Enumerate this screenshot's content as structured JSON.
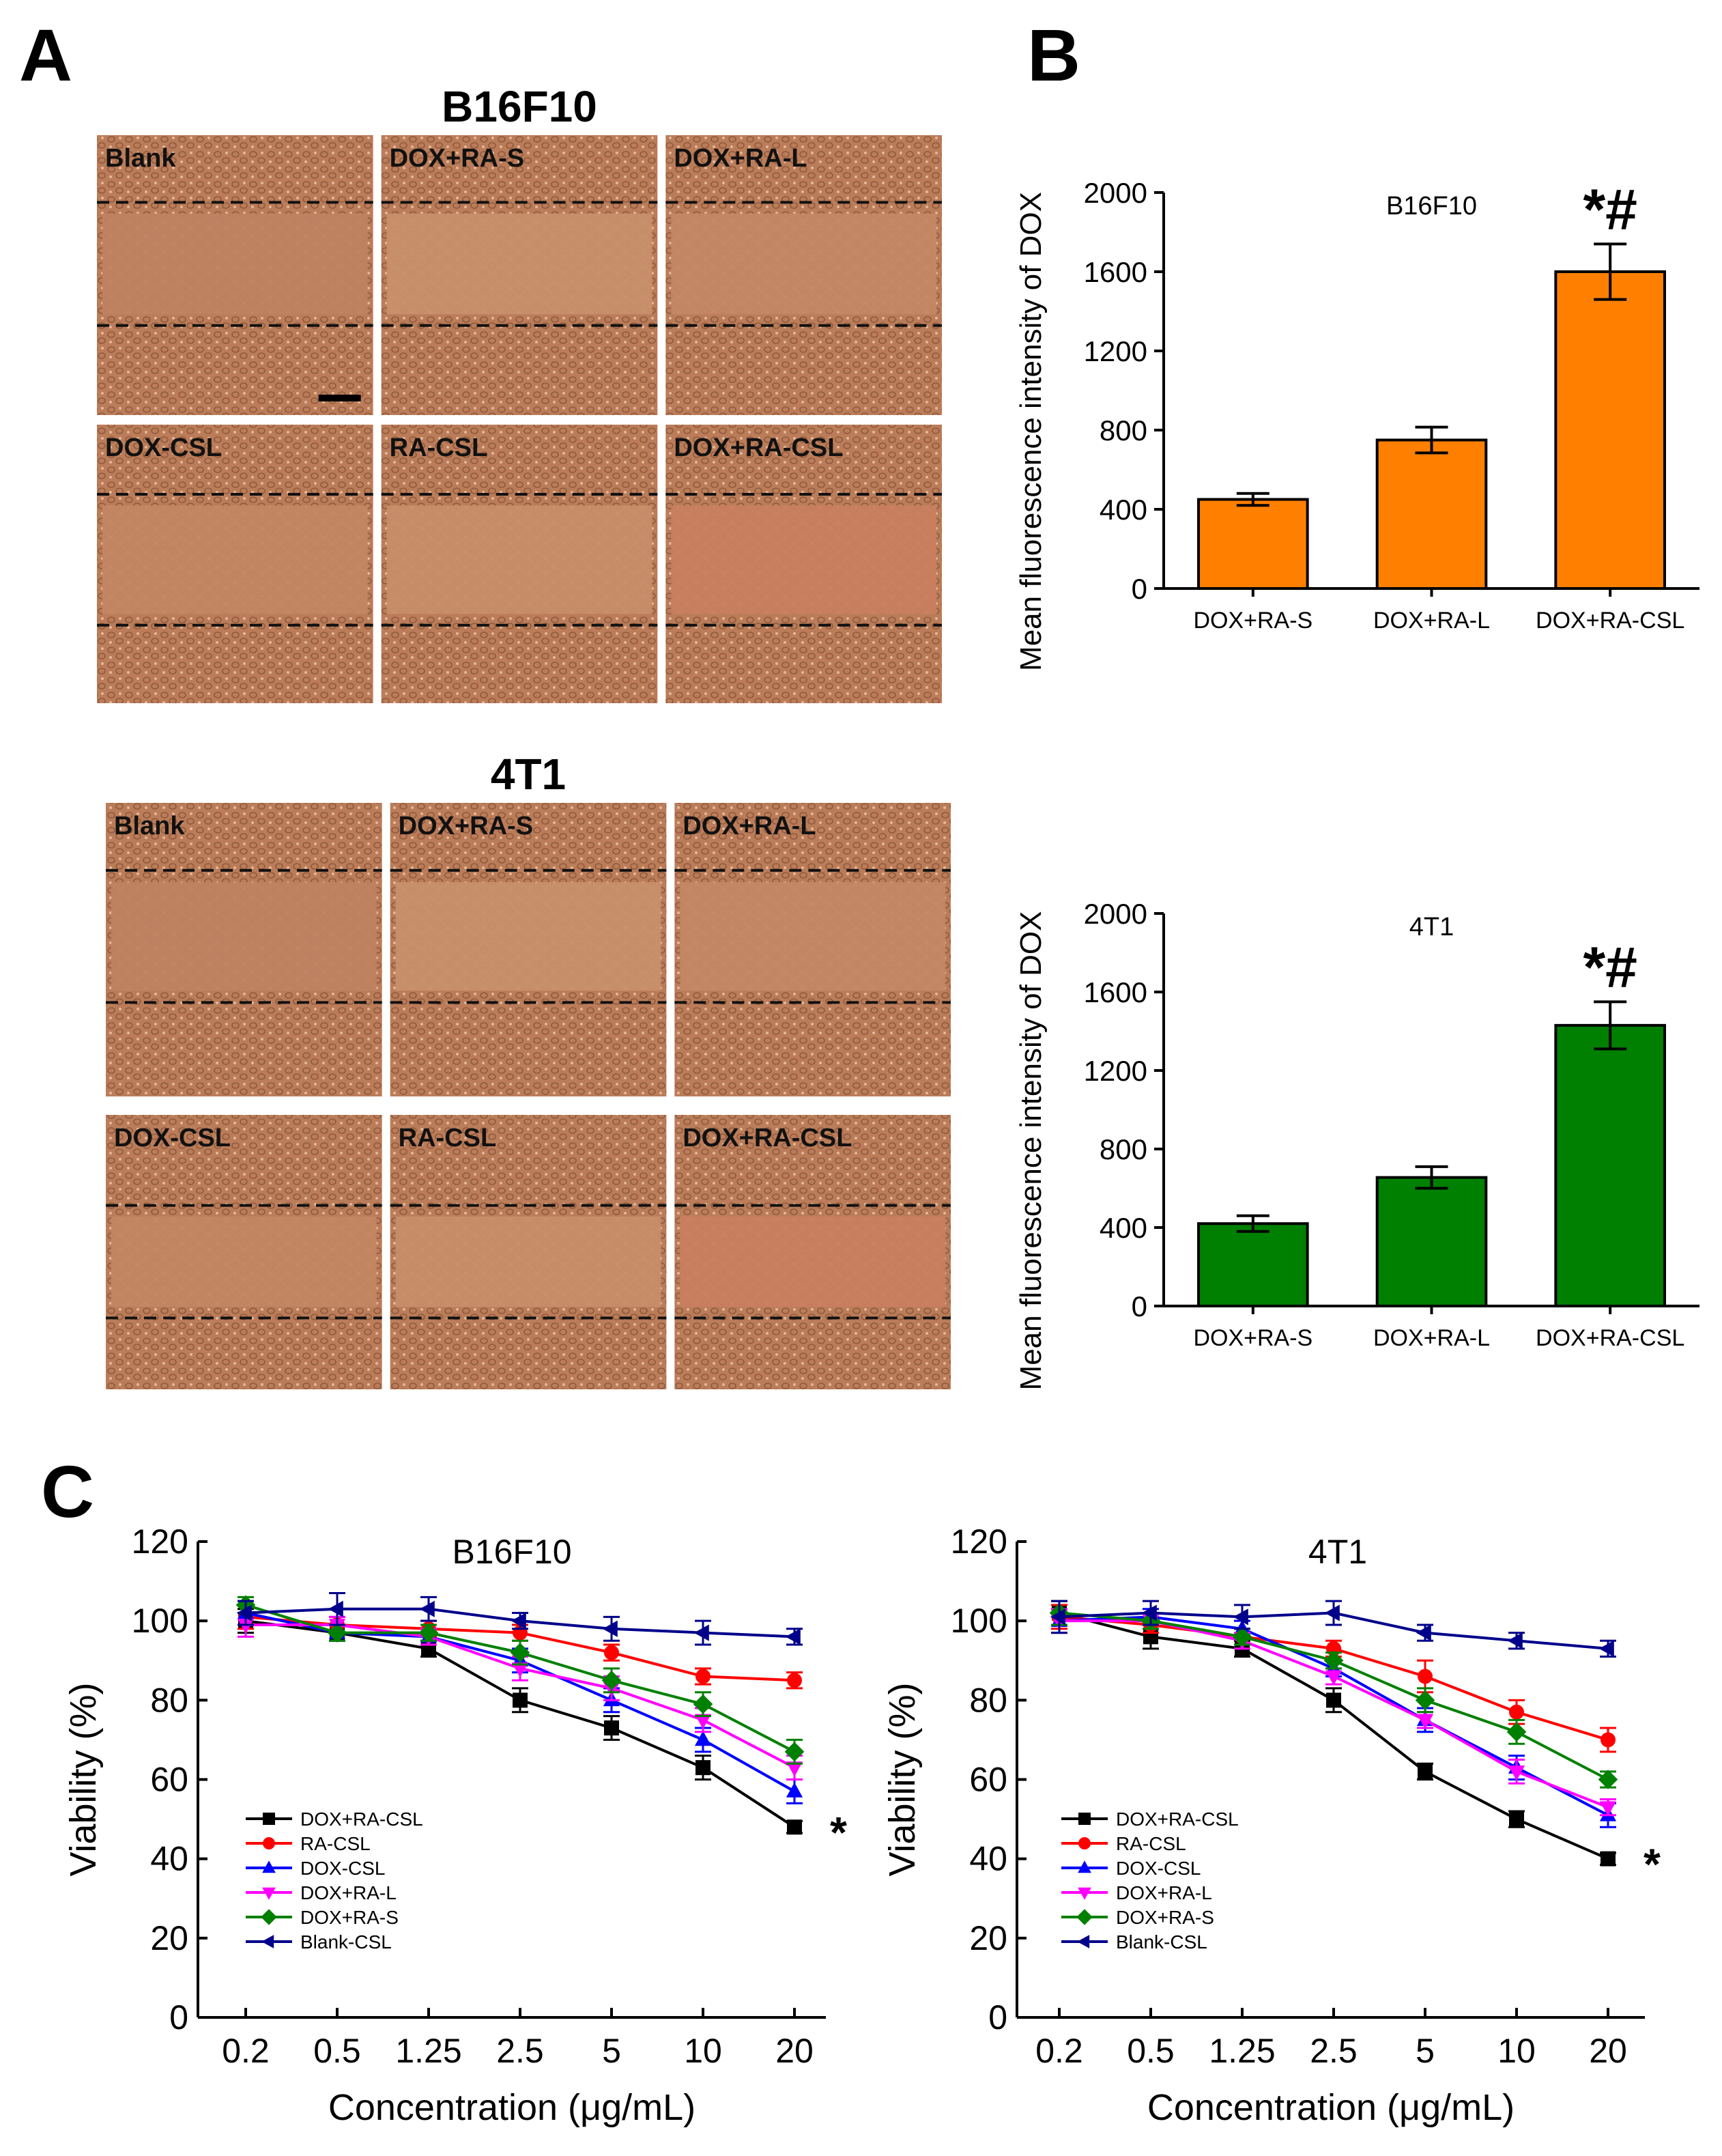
{
  "panel_labels": {
    "a": "A",
    "b": "B",
    "c": "C"
  },
  "panel_a": {
    "scale_bar": "scale-bar",
    "groups": [
      {
        "title": "B16F10",
        "images": [
          "Blank",
          "DOX+RA-S",
          "DOX+RA-L",
          "DOX-CSL",
          "RA-CSL",
          "DOX+RA-CSL"
        ]
      },
      {
        "title": "4T1",
        "images": [
          "Blank",
          "DOX+RA-S",
          "DOX+RA-L",
          "DOX-CSL",
          "RA-CSL",
          "DOX+RA-CSL"
        ]
      }
    ]
  },
  "colors": {
    "orange": "#ff8000",
    "green": "#008000",
    "black": "#000000",
    "red": "#ff0000",
    "blue": "#0000ff",
    "magenta": "#ff00ff",
    "dkgreen": "#008000",
    "navy": "#00008b",
    "tissue": "#c88a66"
  },
  "chart_data": [
    {
      "type": "bar",
      "title": "B16F10",
      "ylabel": "Mean fluorescence intensity of DOX",
      "xlabel": "",
      "categories": [
        "DOX+RA-S",
        "DOX+RA-L",
        "DOX+RA-CSL"
      ],
      "values": [
        450,
        750,
        1600
      ],
      "errors": [
        30,
        65,
        140
      ],
      "ylim": [
        0,
        2000
      ],
      "yticks": [
        0,
        400,
        800,
        1200,
        1600,
        2000
      ],
      "significance": "*#",
      "color": "#ff8000"
    },
    {
      "type": "bar",
      "title": "4T1",
      "ylabel": "Mean fluorescence intensity of DOX",
      "xlabel": "",
      "categories": [
        "DOX+RA-S",
        "DOX+RA-L",
        "DOX+RA-CSL"
      ],
      "values": [
        420,
        655,
        1430
      ],
      "errors": [
        40,
        55,
        120
      ],
      "ylim": [
        0,
        2000
      ],
      "yticks": [
        0,
        400,
        800,
        1200,
        1600,
        2000
      ],
      "significance": "*#",
      "color": "#008000"
    },
    {
      "type": "line",
      "title": "B16F10",
      "xlabel": "Concentration (μg/mL)",
      "ylabel": "Viability (%)",
      "categories": [
        "0.2",
        "0.5",
        "1.25",
        "2.5",
        "5",
        "10",
        "20"
      ],
      "ylim": [
        0,
        120
      ],
      "yticks": [
        0,
        20,
        40,
        60,
        80,
        100,
        120
      ],
      "significance": "*",
      "series": [
        {
          "name": "DOX+RA-CSL",
          "marker": "square",
          "color": "#000000",
          "values": [
            100,
            97,
            93,
            80,
            73,
            63,
            48
          ],
          "errors": [
            3,
            2,
            2,
            3,
            3,
            3,
            1.5
          ]
        },
        {
          "name": "RA-CSL",
          "marker": "circle",
          "color": "#ff0000",
          "values": [
            101,
            99,
            98,
            97,
            92,
            86,
            85
          ],
          "errors": [
            3,
            2,
            2,
            2,
            2,
            2,
            2
          ]
        },
        {
          "name": "DOX-CSL",
          "marker": "triangle-up",
          "color": "#0000ff",
          "values": [
            102,
            97,
            96,
            90,
            80,
            70,
            57
          ],
          "errors": [
            3,
            2,
            2,
            3,
            3,
            3,
            3
          ]
        },
        {
          "name": "DOX+RA-L",
          "marker": "triangle-down",
          "color": "#ff00ff",
          "values": [
            99,
            99,
            96,
            88,
            83,
            75,
            63
          ],
          "errors": [
            3,
            2,
            2,
            3,
            3,
            3,
            3
          ]
        },
        {
          "name": "DOX+RA-S",
          "marker": "diamond",
          "color": "#008000",
          "values": [
            104,
            97,
            97,
            92,
            85,
            79,
            67
          ],
          "errors": [
            2,
            2,
            2,
            3,
            3,
            3,
            3
          ]
        },
        {
          "name": "Blank-CSL",
          "marker": "triangle-left",
          "color": "#00008b",
          "values": [
            102,
            103,
            103,
            100,
            98,
            97,
            96
          ],
          "errors": [
            3,
            4,
            3,
            2,
            3,
            3,
            2
          ]
        }
      ]
    },
    {
      "type": "line",
      "title": "4T1",
      "xlabel": "Concentration (μg/mL)",
      "ylabel": "Viability (%)",
      "categories": [
        "0.2",
        "0.5",
        "1.25",
        "2.5",
        "5",
        "10",
        "20"
      ],
      "ylim": [
        0,
        120
      ],
      "yticks": [
        0,
        20,
        40,
        60,
        80,
        100,
        120
      ],
      "significance": "*",
      "series": [
        {
          "name": "DOX+RA-CSL",
          "marker": "square",
          "color": "#000000",
          "values": [
            102,
            96,
            93,
            80,
            62,
            50,
            40
          ],
          "errors": [
            3,
            3,
            2,
            3,
            2,
            2,
            1.5
          ]
        },
        {
          "name": "RA-CSL",
          "marker": "circle",
          "color": "#ff0000",
          "values": [
            101,
            99,
            96,
            93,
            86,
            77,
            70
          ],
          "errors": [
            3,
            2,
            2,
            2,
            4,
            3,
            3
          ]
        },
        {
          "name": "DOX-CSL",
          "marker": "triangle-up",
          "color": "#0000ff",
          "values": [
            100,
            101,
            98,
            88,
            75,
            63,
            51
          ],
          "errors": [
            3,
            2,
            2,
            2,
            3,
            3,
            3
          ]
        },
        {
          "name": "DOX+RA-L",
          "marker": "triangle-down",
          "color": "#ff00ff",
          "values": [
            100,
            100,
            95,
            86,
            75,
            62,
            53
          ],
          "errors": [
            3,
            2,
            2,
            2,
            2,
            3,
            2
          ]
        },
        {
          "name": "DOX+RA-S",
          "marker": "diamond",
          "color": "#008000",
          "values": [
            102,
            100,
            96,
            90,
            80,
            72,
            60
          ],
          "errors": [
            3,
            2,
            2,
            2,
            3,
            3,
            2
          ]
        },
        {
          "name": "Blank-CSL",
          "marker": "triangle-left",
          "color": "#00008b",
          "values": [
            101,
            102,
            101,
            102,
            97,
            95,
            93
          ],
          "errors": [
            4,
            3,
            3,
            3,
            2,
            2,
            2
          ]
        }
      ]
    }
  ]
}
